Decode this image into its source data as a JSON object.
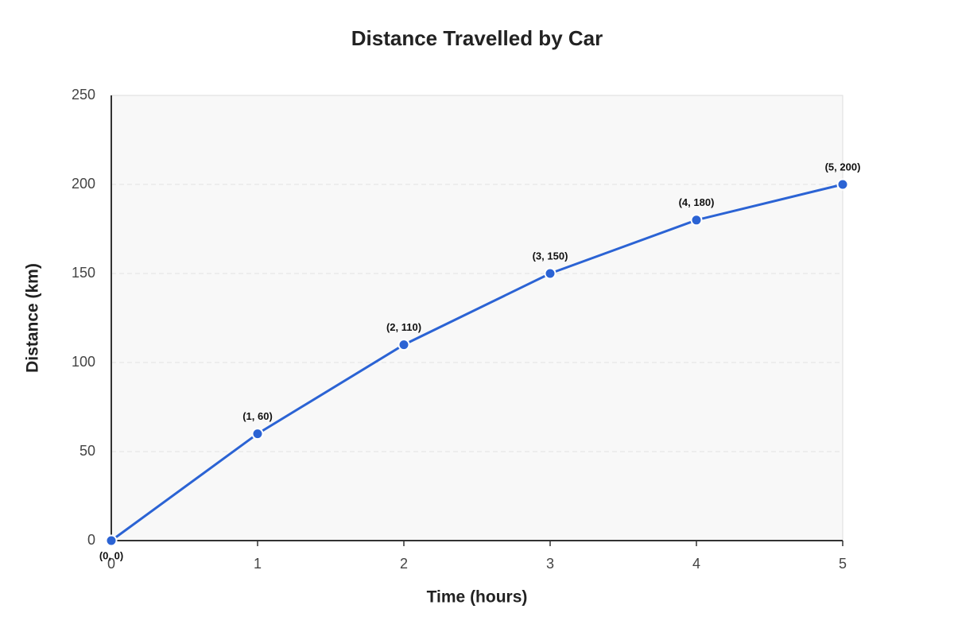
{
  "chart_data": {
    "type": "line",
    "title": "Distance Travelled by Car",
    "x_label": "Time (hours)",
    "y_label": "Distance (km)",
    "x": [
      0,
      1,
      2,
      3,
      4,
      5
    ],
    "values": [
      0,
      60,
      110,
      150,
      180,
      200
    ],
    "value_labels": [
      "(0, 0)",
      "(1, 60)",
      "(2, 110)",
      "(3, 150)",
      "(4, 180)",
      "(5, 200)"
    ],
    "color": "#2b63d4",
    "xlim": [
      0,
      5
    ],
    "xticks": [
      0,
      1,
      2,
      3,
      4,
      5
    ],
    "ylim": [
      0,
      250
    ],
    "yticks": [
      0,
      50,
      100,
      150,
      200,
      250
    ],
    "grid": true
  }
}
